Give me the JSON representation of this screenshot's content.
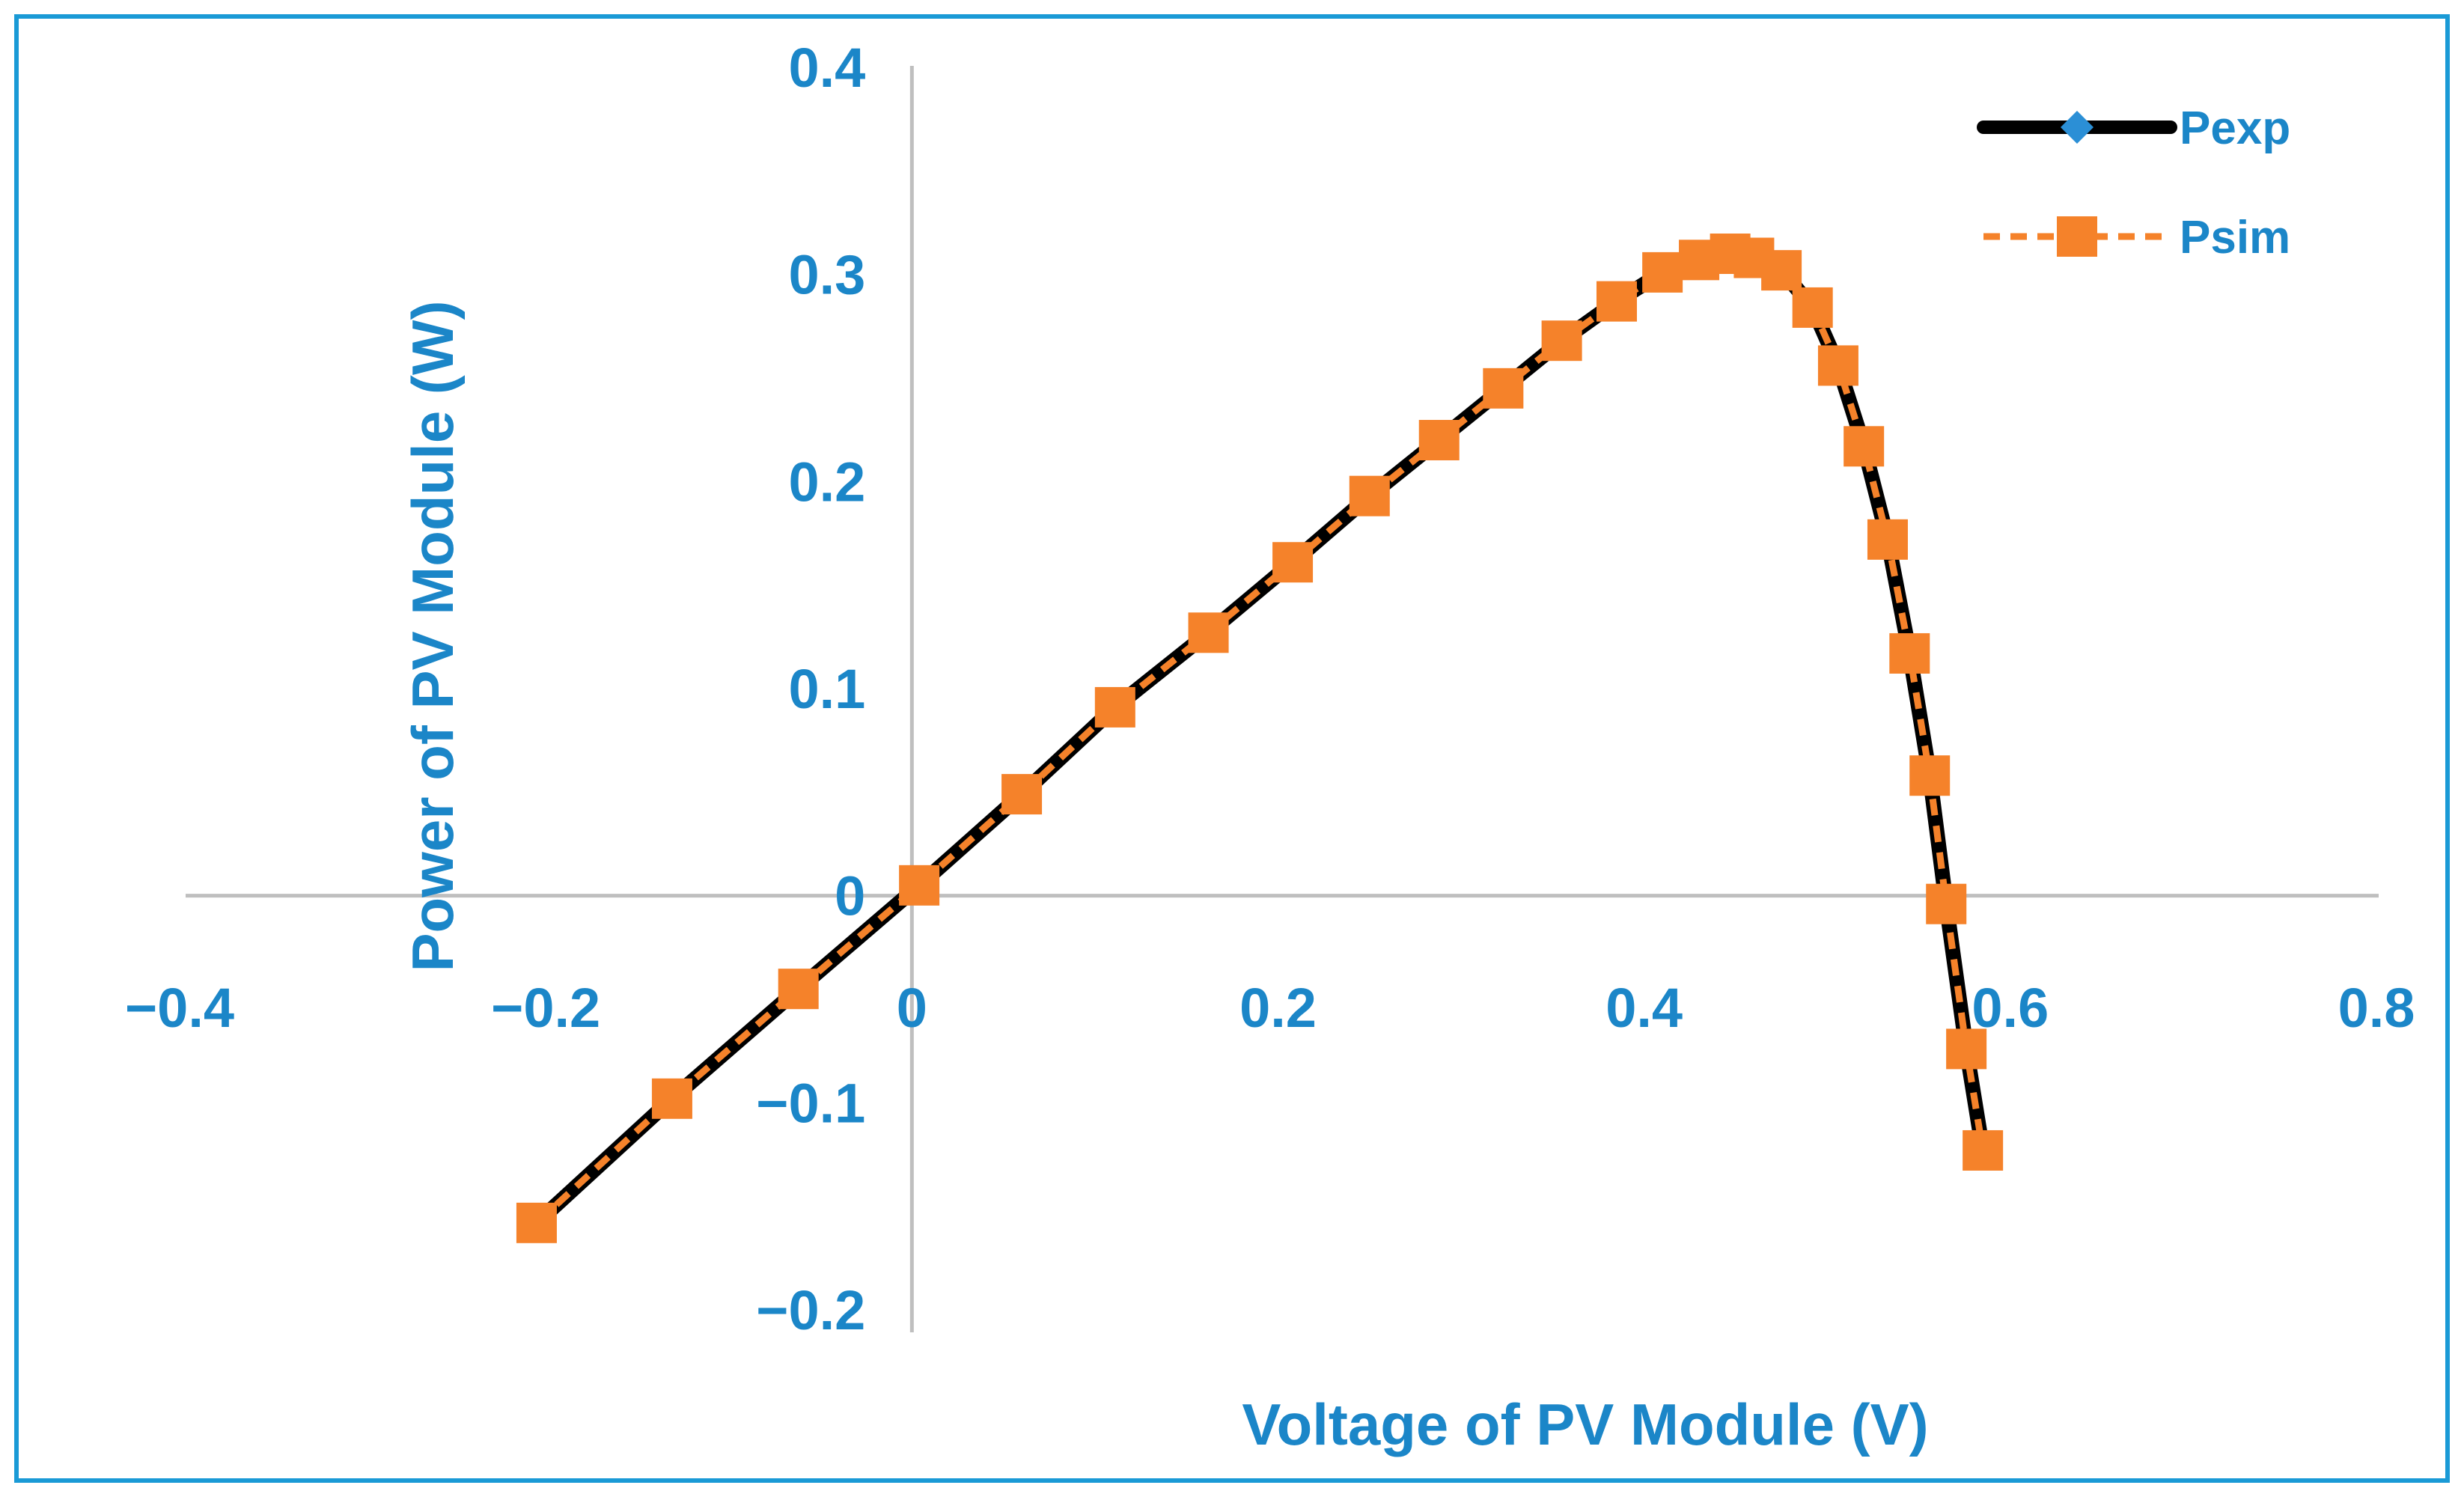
{
  "colors": {
    "border": "#1a9ad6",
    "label": "#1b86c8",
    "axis": "#bfbfbf",
    "pexp_line": "#000000",
    "pexp_marker": "#2b8fd6",
    "psim": "#f5822a"
  },
  "chart_data": {
    "type": "line",
    "title": "",
    "xlabel": "Voltage of PV Module (V)",
    "ylabel": "Power of PV Module (W)",
    "xlim": [
      -0.4,
      0.8
    ],
    "ylim": [
      -0.2,
      0.4
    ],
    "x_ticks": [
      -0.4,
      -0.2,
      0,
      0.2,
      0.4,
      0.6,
      0.8
    ],
    "x_tick_labels": [
      "−0.4",
      "−0.2",
      "0",
      "0.2",
      "0.4",
      "0.6",
      "0.8"
    ],
    "y_ticks": [
      -0.2,
      -0.1,
      0,
      0.1,
      0.2,
      0.3,
      0.4
    ],
    "y_tick_labels": [
      "−0.2",
      "−0.1",
      "0",
      "0.1",
      "0.2",
      "0.3",
      "0.4"
    ],
    "grid": false,
    "legend_position": "top-right",
    "series": [
      {
        "name": "Pexp",
        "style": "solid",
        "marker": "diamond",
        "x": [
          -0.205,
          -0.131,
          -0.062,
          0.004,
          0.06,
          0.111,
          0.162,
          0.208,
          0.25,
          0.288,
          0.323,
          0.355,
          0.385,
          0.41,
          0.43,
          0.447,
          0.46,
          0.475,
          0.492,
          0.506,
          0.52,
          0.533,
          0.545,
          0.556,
          0.565,
          0.576,
          0.585
        ],
        "values": [
          -0.158,
          -0.098,
          -0.045,
          0.005,
          0.049,
          0.091,
          0.127,
          0.161,
          0.193,
          0.22,
          0.245,
          0.268,
          0.287,
          0.301,
          0.307,
          0.31,
          0.308,
          0.302,
          0.284,
          0.256,
          0.217,
          0.172,
          0.117,
          0.058,
          -0.004,
          -0.074,
          -0.123
        ]
      },
      {
        "name": "Psim",
        "style": "dashed",
        "marker": "square",
        "x": [
          -0.205,
          -0.131,
          -0.062,
          0.004,
          0.06,
          0.111,
          0.162,
          0.208,
          0.25,
          0.288,
          0.323,
          0.355,
          0.385,
          0.41,
          0.43,
          0.447,
          0.46,
          0.475,
          0.492,
          0.506,
          0.52,
          0.533,
          0.545,
          0.556,
          0.565,
          0.576,
          0.585
        ],
        "values": [
          -0.158,
          -0.098,
          -0.045,
          0.005,
          0.049,
          0.091,
          0.127,
          0.161,
          0.193,
          0.22,
          0.245,
          0.268,
          0.287,
          0.301,
          0.307,
          0.31,
          0.308,
          0.302,
          0.284,
          0.256,
          0.217,
          0.172,
          0.117,
          0.058,
          -0.004,
          -0.074,
          -0.123
        ]
      }
    ]
  }
}
